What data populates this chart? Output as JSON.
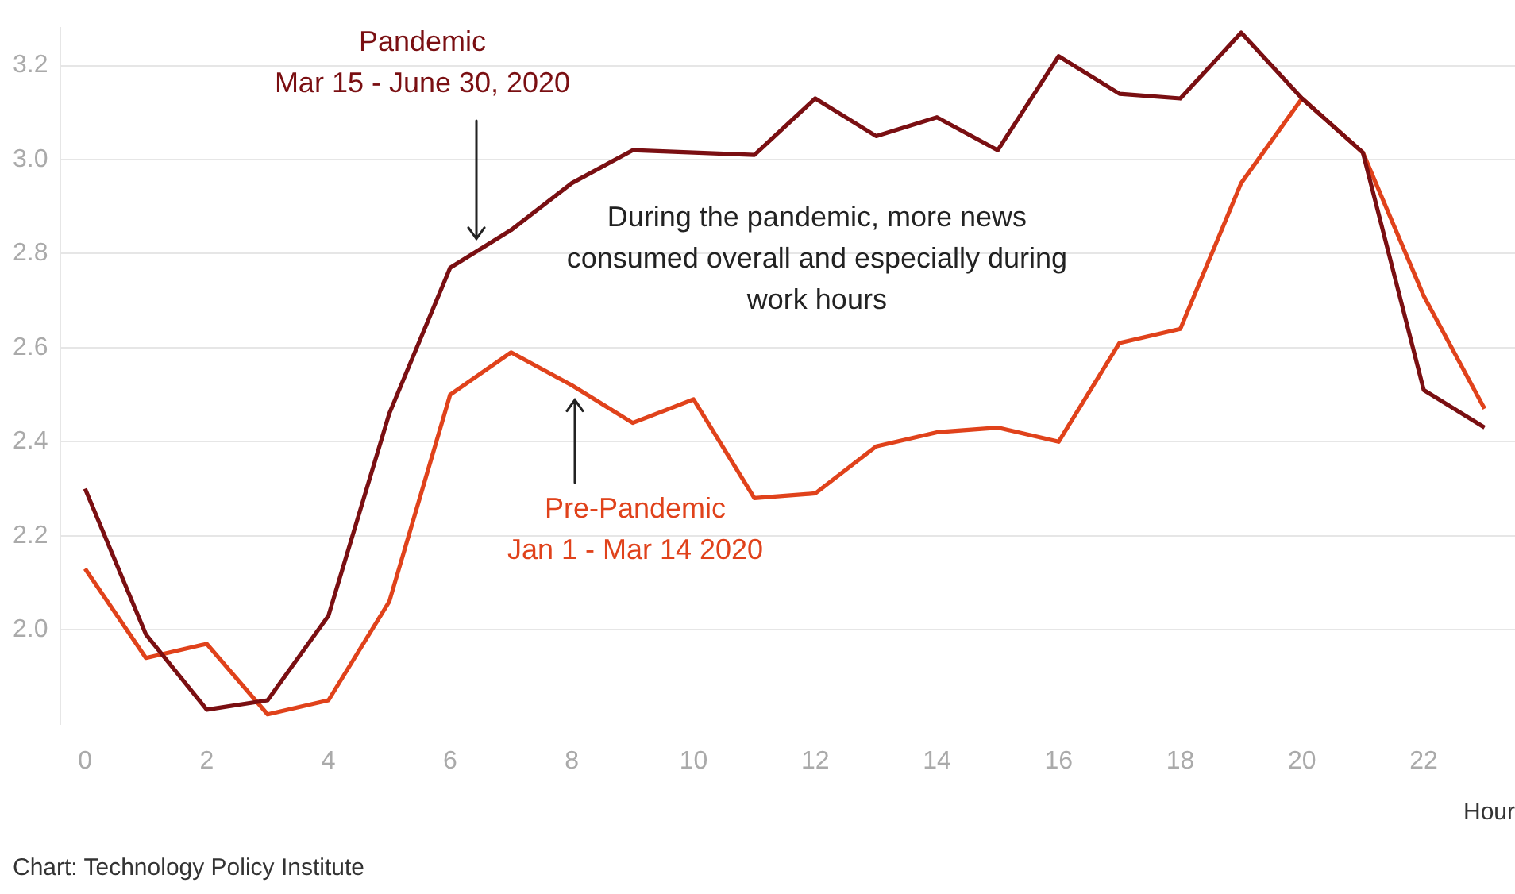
{
  "chart_data": {
    "type": "line",
    "xlabel": "Hour",
    "x": [
      0,
      1,
      2,
      3,
      4,
      5,
      6,
      7,
      8,
      9,
      10,
      11,
      12,
      13,
      14,
      15,
      16,
      17,
      18,
      19,
      20,
      21,
      22,
      23
    ],
    "series": [
      {
        "name": "Pandemic",
        "color": "#7a0f12",
        "values": [
          2.3,
          1.99,
          1.83,
          1.85,
          2.03,
          2.46,
          2.77,
          2.85,
          2.95,
          3.02,
          3.015,
          3.01,
          3.13,
          3.05,
          3.09,
          3.02,
          3.22,
          3.14,
          3.13,
          3.27,
          3.13,
          3.015,
          2.51,
          2.43
        ]
      },
      {
        "name": "Pre-Pandemic",
        "color": "#e0421b",
        "values": [
          2.13,
          1.94,
          1.97,
          1.82,
          1.85,
          2.06,
          2.5,
          2.59,
          2.52,
          2.44,
          2.49,
          2.28,
          2.29,
          2.39,
          2.42,
          2.43,
          2.4,
          2.61,
          2.64,
          2.95,
          3.13,
          3.015,
          2.71,
          2.47
        ]
      }
    ],
    "xlim": [
      -0.4,
      23.5
    ],
    "xticks": [
      0,
      2,
      4,
      6,
      8,
      10,
      12,
      14,
      16,
      18,
      20,
      22
    ],
    "ylim": [
      1.8,
      3.28
    ],
    "yticks": [
      {
        "value": 2,
        "label": "2.0"
      },
      {
        "value": 2.2,
        "label": "2.2"
      },
      {
        "value": 2.4,
        "label": "2.4"
      },
      {
        "value": 2.6,
        "label": "2.6"
      },
      {
        "value": 2.8,
        "label": "2.8"
      },
      {
        "value": 3,
        "label": "3.0"
      },
      {
        "value": 3.2,
        "label": "3.2"
      }
    ],
    "grid": "y",
    "legend": false,
    "marker": "none",
    "line_style": "solid",
    "annotations": [
      "Mar 15 - June 30, 2020",
      "Jan 1 - Mar 14 2020",
      "During the pandemic, more news consumed overall and especially during work hours",
      "Chart: Technology Policy Institute"
    ]
  }
}
